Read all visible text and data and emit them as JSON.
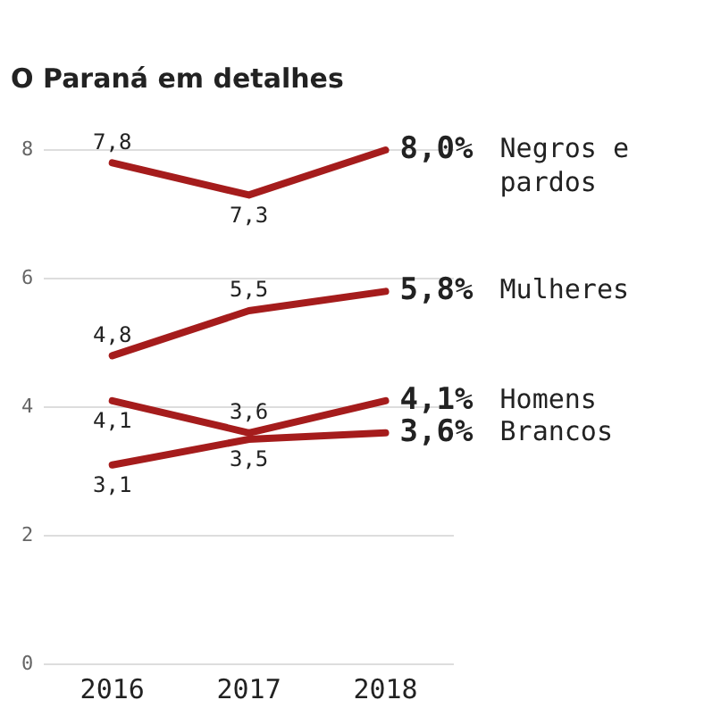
{
  "chart_data": {
    "type": "line",
    "title": "O Paraná em detalhes",
    "categories": [
      "2016",
      "2017",
      "2018"
    ],
    "series": [
      {
        "name": "Negros e pardos",
        "color": "#a51c1c",
        "values": [
          7.8,
          7.3,
          8.0
        ],
        "value_labels": [
          "7,8",
          "7,3",
          "8,0%"
        ]
      },
      {
        "name": "Mulheres",
        "color": "#a51c1c",
        "values": [
          4.8,
          5.5,
          5.8
        ],
        "value_labels": [
          "4,8",
          "5,5",
          "5,8%"
        ]
      },
      {
        "name": "Homens",
        "color": "#a51c1c",
        "values": [
          4.1,
          3.6,
          4.1
        ],
        "value_labels": [
          "4,1",
          "3,6",
          "4,1%"
        ]
      },
      {
        "name": "Brancos",
        "color": "#a51c1c",
        "values": [
          3.1,
          3.5,
          3.6
        ],
        "value_labels": [
          "3,1",
          "3,5",
          "3,6%"
        ]
      }
    ],
    "ylim": [
      0,
      8
    ],
    "yticks": [
      0,
      2,
      4,
      6,
      8
    ],
    "grid": "y",
    "legend": false,
    "marker": "none",
    "line_style": "solid"
  }
}
